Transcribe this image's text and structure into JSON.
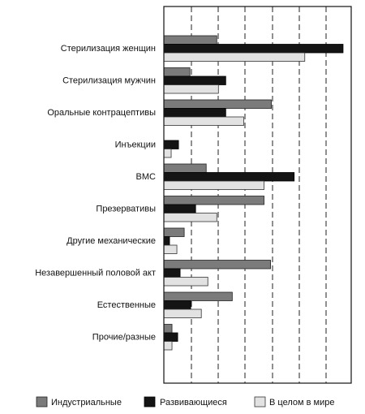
{
  "chart_data": {
    "type": "bar",
    "orientation": "horizontal",
    "categories": [
      "Стерилизация женщин",
      "Стерилизация мужчин",
      "Оральные контрацептивы",
      "Инъекции",
      "ВМС",
      "Презервативы",
      "Другие механические",
      "Незавершенный половой акт",
      "Естественные",
      "Прочие/разные"
    ],
    "series": [
      {
        "name": "Индустриальные",
        "color": "#7b7b7b",
        "values": [
          6.5,
          3.2,
          13.2,
          0,
          5.2,
          12.3,
          2.5,
          13.1,
          8.4,
          1.0
        ]
      },
      {
        "name": "Развивающиеся",
        "color": "#141414",
        "values": [
          22.0,
          7.6,
          7.6,
          1.8,
          16.0,
          3.9,
          0.7,
          2.0,
          3.3,
          1.7
        ]
      },
      {
        "name": "В целом в мире",
        "color": "#e2e2e2",
        "values": [
          17.3,
          6.7,
          9.8,
          0.9,
          12.3,
          6.5,
          1.6,
          5.4,
          4.6,
          1.0
        ]
      }
    ],
    "xlim": [
      0,
      23
    ],
    "grid": true,
    "legend": "bottom",
    "title": "",
    "xlabel": "",
    "ylabel": ""
  }
}
